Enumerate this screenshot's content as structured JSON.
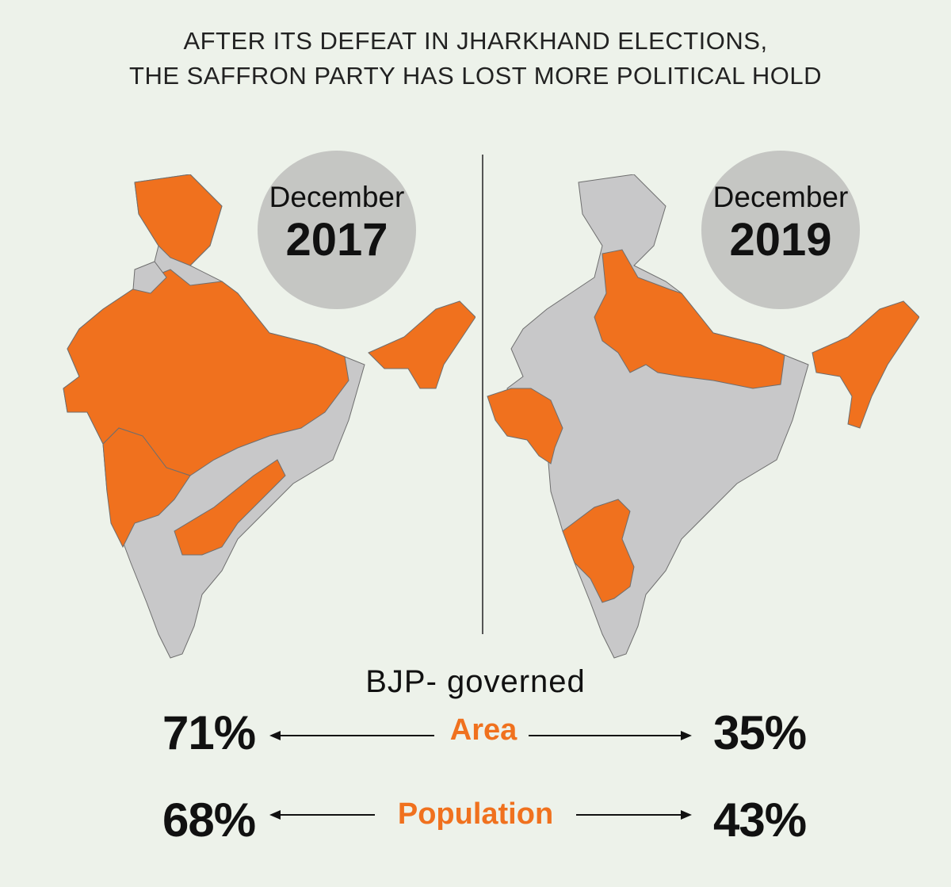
{
  "title": {
    "line1": "AFTER ITS DEFEAT IN JHARKHAND ELECTIONS,",
    "line2": "THE SAFFRON PARTY HAS LOST MORE POLITICAL HOLD"
  },
  "panels": [
    {
      "month": "December",
      "year": "2017"
    },
    {
      "month": "December",
      "year": "2019"
    }
  ],
  "colors": {
    "bjp_governed": "#f0711e",
    "other": "#c8c8c9",
    "background": "#edf2ea"
  },
  "heading": "BJP- governed",
  "metrics": [
    {
      "label": "Area",
      "left": "71%",
      "right": "35%"
    },
    {
      "label": "Population",
      "left": "68%",
      "right": "43%"
    }
  ]
}
